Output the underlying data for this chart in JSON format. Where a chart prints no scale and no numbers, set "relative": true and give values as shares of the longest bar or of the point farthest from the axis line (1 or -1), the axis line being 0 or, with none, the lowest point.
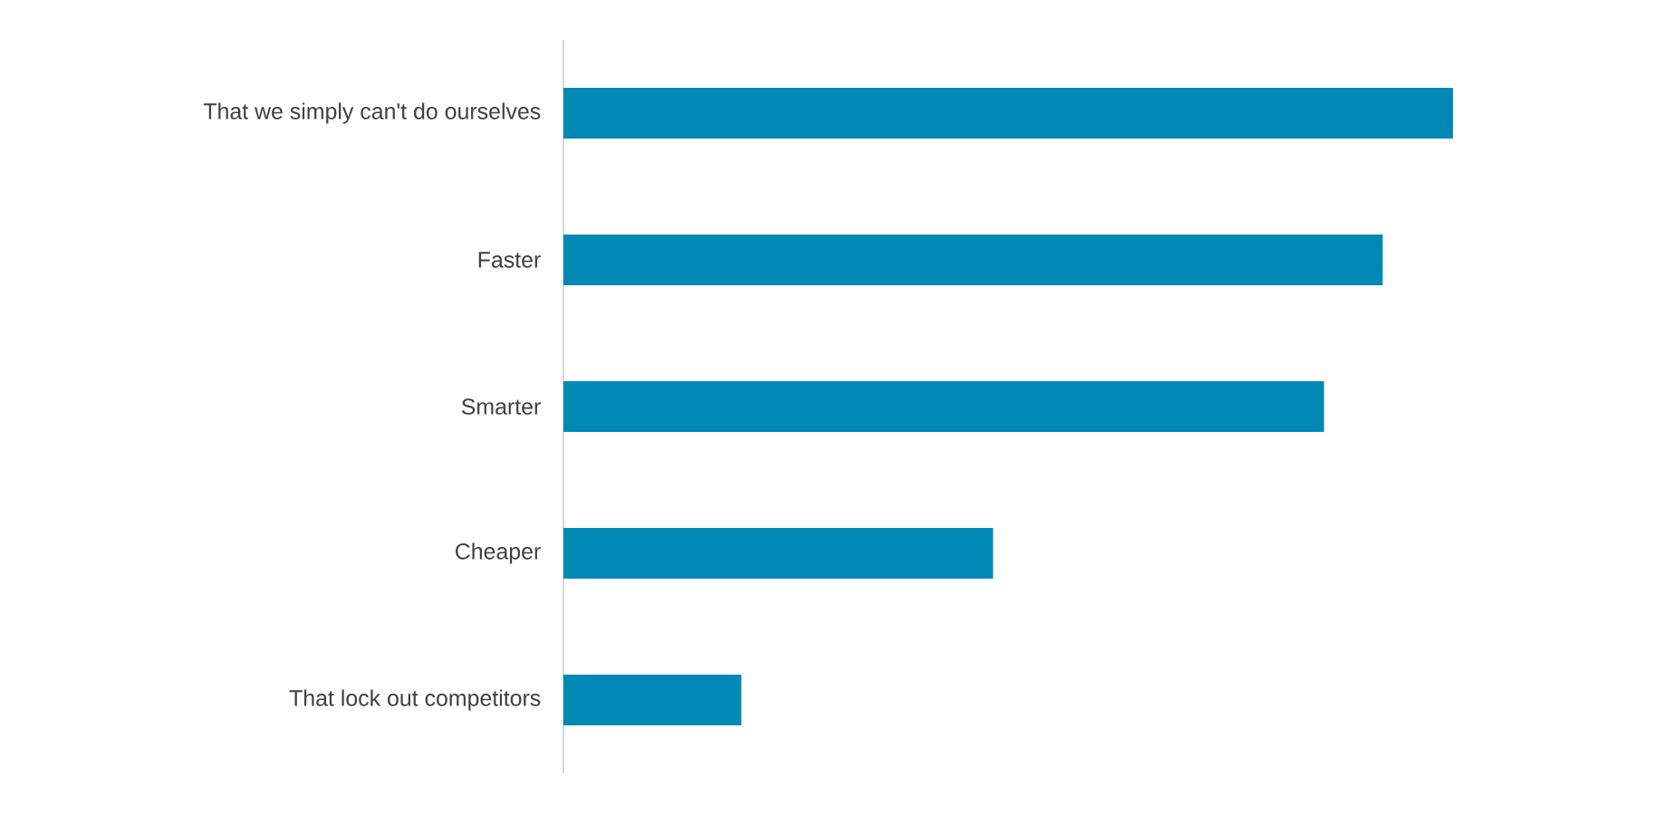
{
  "chart_data": {
    "type": "bar",
    "orientation": "horizontal",
    "relative": true,
    "color": "#0089b4",
    "categories": [
      "That we simply can't do ourselves",
      "Faster",
      "Smarter",
      "Cheaper",
      "That lock out competitors"
    ],
    "values": [
      1,
      0.921,
      0.855,
      0.483,
      0.2
    ]
  }
}
